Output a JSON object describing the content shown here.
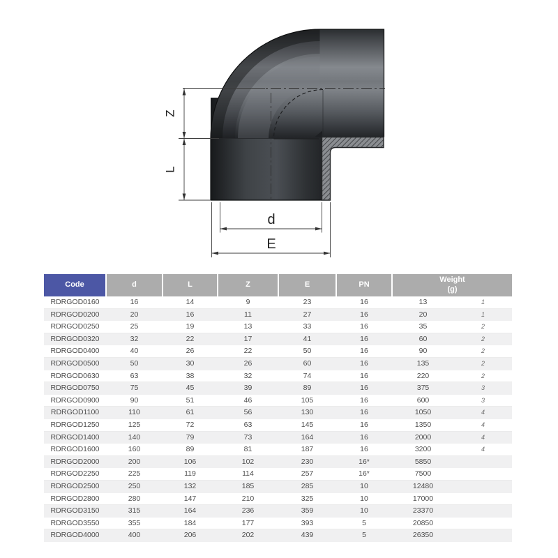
{
  "diagram": {
    "labels": {
      "z": "Z",
      "l": "L",
      "d": "d",
      "e": "E"
    }
  },
  "table": {
    "colors": {
      "accent": "#4c57a5",
      "header_gray": "#acacac",
      "stripe": "#f0f0f1"
    },
    "header": {
      "code": "Code",
      "d": "d",
      "l": "L",
      "z": "Z",
      "e": "E",
      "pn": "PN",
      "weight_line1": "Weight",
      "weight_line2": "(g)",
      "note": ""
    },
    "rows": [
      {
        "code": "RDRGOD0160",
        "d": "16",
        "l": "14",
        "z": "9",
        "e": "23",
        "pn": "16",
        "weight": "13",
        "note": "1"
      },
      {
        "code": "RDRGOD0200",
        "d": "20",
        "l": "16",
        "z": "11",
        "e": "27",
        "pn": "16",
        "weight": "20",
        "note": "1"
      },
      {
        "code": "RDRGOD0250",
        "d": "25",
        "l": "19",
        "z": "13",
        "e": "33",
        "pn": "16",
        "weight": "35",
        "note": "2"
      },
      {
        "code": "RDRGOD0320",
        "d": "32",
        "l": "22",
        "z": "17",
        "e": "41",
        "pn": "16",
        "weight": "60",
        "note": "2"
      },
      {
        "code": "RDRGOD0400",
        "d": "40",
        "l": "26",
        "z": "22",
        "e": "50",
        "pn": "16",
        "weight": "90",
        "note": "2"
      },
      {
        "code": "RDRGOD0500",
        "d": "50",
        "l": "30",
        "z": "26",
        "e": "60",
        "pn": "16",
        "weight": "135",
        "note": "2"
      },
      {
        "code": "RDRGOD0630",
        "d": "63",
        "l": "38",
        "z": "32",
        "e": "74",
        "pn": "16",
        "weight": "220",
        "note": "2"
      },
      {
        "code": "RDRGOD0750",
        "d": "75",
        "l": "45",
        "z": "39",
        "e": "89",
        "pn": "16",
        "weight": "375",
        "note": "3"
      },
      {
        "code": "RDRGOD0900",
        "d": "90",
        "l": "51",
        "z": "46",
        "e": "105",
        "pn": "16",
        "weight": "600",
        "note": "3"
      },
      {
        "code": "RDRGOD1100",
        "d": "110",
        "l": "61",
        "z": "56",
        "e": "130",
        "pn": "16",
        "weight": "1050",
        "note": "4"
      },
      {
        "code": "RDRGOD1250",
        "d": "125",
        "l": "72",
        "z": "63",
        "e": "145",
        "pn": "16",
        "weight": "1350",
        "note": "4"
      },
      {
        "code": "RDRGOD1400",
        "d": "140",
        "l": "79",
        "z": "73",
        "e": "164",
        "pn": "16",
        "weight": "2000",
        "note": "4"
      },
      {
        "code": "RDRGOD1600",
        "d": "160",
        "l": "89",
        "z": "81",
        "e": "187",
        "pn": "16",
        "weight": "3200",
        "note": "4"
      },
      {
        "code": "RDRGOD2000",
        "d": "200",
        "l": "106",
        "z": "102",
        "e": "230",
        "pn": "16*",
        "weight": "5850",
        "note": ""
      },
      {
        "code": "RDRGOD2250",
        "d": "225",
        "l": "119",
        "z": "114",
        "e": "257",
        "pn": "16*",
        "weight": "7500",
        "note": ""
      },
      {
        "code": "RDRGOD2500",
        "d": "250",
        "l": "132",
        "z": "185",
        "e": "285",
        "pn": "10",
        "weight": "12480",
        "note": ""
      },
      {
        "code": "RDRGOD2800",
        "d": "280",
        "l": "147",
        "z": "210",
        "e": "325",
        "pn": "10",
        "weight": "17000",
        "note": ""
      },
      {
        "code": "RDRGOD3150",
        "d": "315",
        "l": "164",
        "z": "236",
        "e": "359",
        "pn": "10",
        "weight": "23370",
        "note": ""
      },
      {
        "code": "RDRGOD3550",
        "d": "355",
        "l": "184",
        "z": "177",
        "e": "393",
        "pn": "5",
        "weight": "20850",
        "note": ""
      },
      {
        "code": "RDRGOD4000",
        "d": "400",
        "l": "206",
        "z": "202",
        "e": "439",
        "pn": "5",
        "weight": "26350",
        "note": ""
      }
    ]
  }
}
